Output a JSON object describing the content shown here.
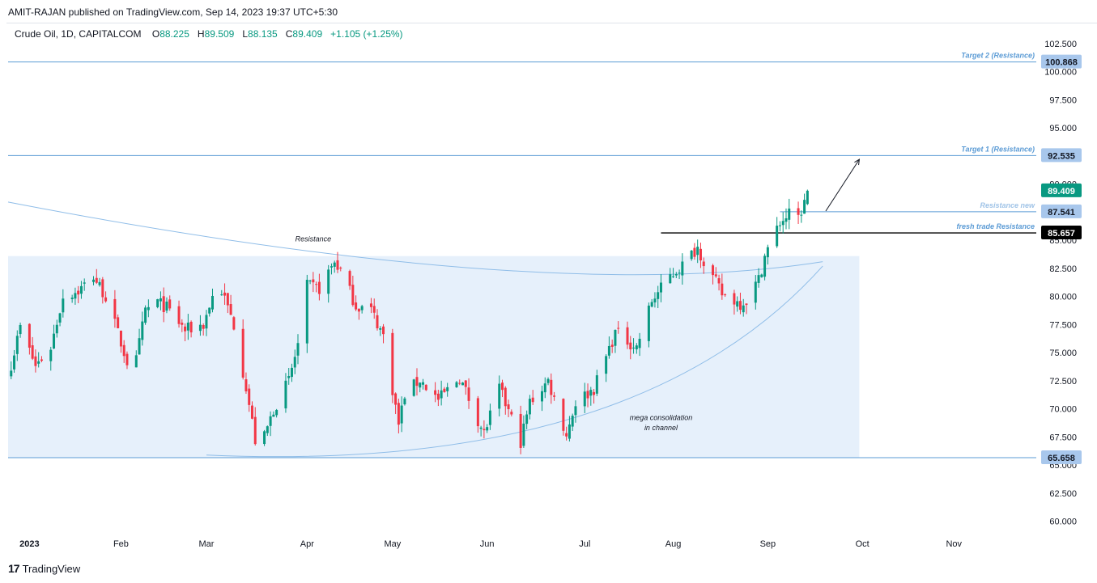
{
  "header": {
    "publisher": "AMIT-RAJAN published on TradingView.com, Sep 14, 2023 19:37 UTC+5:30",
    "symbol": "Crude Oil, 1D, CAPITALCOM",
    "ohlc": {
      "o_label": "O",
      "o": "88.225",
      "h_label": "H",
      "h": "89.509",
      "l_label": "L",
      "l": "88.135",
      "c_label": "C",
      "c": "89.409",
      "change": "+1.105 (+1.25%)"
    }
  },
  "footer": {
    "brand": "TradingView"
  },
  "colors": {
    "up": "#089981",
    "down": "#f23645",
    "level": "#5b9bd5",
    "zone": "#e3eefb",
    "accent": "#2962ff"
  },
  "chart_data": {
    "type": "candlestick",
    "title": "Crude Oil, 1D, CAPITALCOM",
    "y_axis": {
      "min": 58.9,
      "max": 103.5,
      "ticks": [
        "60.000",
        "62.500",
        "65.000",
        "67.500",
        "70.000",
        "72.500",
        "75.000",
        "77.500",
        "80.000",
        "82.500",
        "85.000",
        "87.500",
        "90.000",
        "92.500",
        "95.000",
        "97.500",
        "100.000",
        "102.500"
      ]
    },
    "x_axis": {
      "start": "2022-12-26",
      "end": "2023-11-28",
      "labels": [
        {
          "date": "2023-01-02",
          "label": "2023"
        },
        {
          "date": "2023-02-01",
          "label": "Feb"
        },
        {
          "date": "2023-03-01",
          "label": "Mar"
        },
        {
          "date": "2023-04-03",
          "label": "Apr"
        },
        {
          "date": "2023-05-01",
          "label": "May"
        },
        {
          "date": "2023-06-01",
          "label": "Jun"
        },
        {
          "date": "2023-07-03",
          "label": "Jul"
        },
        {
          "date": "2023-08-01",
          "label": "Aug"
        },
        {
          "date": "2023-09-01",
          "label": "Sep"
        },
        {
          "date": "2023-10-02",
          "label": "Oct"
        },
        {
          "date": "2023-11-01",
          "label": "Nov"
        }
      ]
    },
    "series": [
      {
        "name": "Crude Oil",
        "close_anchors": [
          [
            "2022-12-27",
            74.0
          ],
          [
            "2022-12-30",
            77.3
          ],
          [
            "2023-01-04",
            73.8
          ],
          [
            "2023-01-09",
            75.5
          ],
          [
            "2023-01-13",
            80.0
          ],
          [
            "2023-01-18",
            80.5
          ],
          [
            "2023-01-23",
            81.8
          ],
          [
            "2023-01-27",
            80.0
          ],
          [
            "2023-02-03",
            74.2
          ],
          [
            "2023-02-06",
            74.3
          ],
          [
            "2023-02-09",
            78.8
          ],
          [
            "2023-02-13",
            79.5
          ],
          [
            "2023-02-16",
            79.0
          ],
          [
            "2023-02-22",
            77.0
          ],
          [
            "2023-02-28",
            77.5
          ],
          [
            "2023-03-03",
            80.0
          ],
          [
            "2023-03-06",
            80.5
          ],
          [
            "2023-03-10",
            77.5
          ],
          [
            "2023-03-14",
            72.0
          ],
          [
            "2023-03-17",
            67.2
          ],
          [
            "2023-03-20",
            67.5
          ],
          [
            "2023-03-23",
            70.0
          ],
          [
            "2023-03-28",
            72.5
          ],
          [
            "2023-03-31",
            75.7
          ],
          [
            "2023-04-03",
            80.9
          ],
          [
            "2023-04-07",
            80.7
          ],
          [
            "2023-04-12",
            83.1
          ],
          [
            "2023-04-14",
            82.3
          ],
          [
            "2023-04-19",
            79.2
          ],
          [
            "2023-04-24",
            78.8
          ],
          [
            "2023-04-28",
            76.5
          ],
          [
            "2023-05-03",
            68.6
          ],
          [
            "2023-05-05",
            71.3
          ],
          [
            "2023-05-10",
            72.6
          ],
          [
            "2023-05-16",
            70.8
          ],
          [
            "2023-05-23",
            72.8
          ],
          [
            "2023-05-31",
            67.8
          ],
          [
            "2023-06-05",
            71.8
          ],
          [
            "2023-06-12",
            67.1
          ],
          [
            "2023-06-15",
            70.6
          ],
          [
            "2023-06-21",
            72.5
          ],
          [
            "2023-06-27",
            67.7
          ],
          [
            "2023-06-30",
            70.6
          ],
          [
            "2023-07-06",
            71.8
          ],
          [
            "2023-07-13",
            76.8
          ],
          [
            "2023-07-20",
            75.5
          ],
          [
            "2023-07-25",
            79.6
          ],
          [
            "2023-07-31",
            81.8
          ],
          [
            "2023-08-04",
            82.8
          ],
          [
            "2023-08-09",
            84.4
          ],
          [
            "2023-08-11",
            83.2
          ],
          [
            "2023-08-17",
            80.2
          ],
          [
            "2023-08-23",
            79.4
          ],
          [
            "2023-08-25",
            79.7
          ],
          [
            "2023-08-29",
            81.5
          ],
          [
            "2023-08-31",
            83.6
          ],
          [
            "2023-09-05",
            86.6
          ],
          [
            "2023-09-08",
            87.3
          ],
          [
            "2023-09-11",
            87.0
          ],
          [
            "2023-09-13",
            88.3
          ],
          [
            "2023-09-14",
            89.409
          ]
        ]
      }
    ],
    "last_candle": {
      "date": "2023-09-14",
      "open": 88.225,
      "high": 89.509,
      "low": 88.135,
      "close": 89.409
    },
    "levels": [
      {
        "label": "Target 2 (Resistance)",
        "value": 100.868,
        "value_label": "100.868",
        "style": "line"
      },
      {
        "label": "Target 1 (Resistance)",
        "value": 92.535,
        "value_label": "92.535",
        "style": "line"
      },
      {
        "label": "Resistance new",
        "value": 87.541,
        "value_label": "87.541",
        "style": "short",
        "from": "2023-09-05"
      },
      {
        "label": "fresh trade Resistance",
        "value": 85.657,
        "value_label": "85.657",
        "style": "black",
        "from": "2023-07-28"
      },
      {
        "label": "",
        "value": 65.658,
        "value_label": "65.658",
        "style": "line"
      }
    ],
    "last_price": {
      "value": 89.409,
      "label": "89.409"
    },
    "consolidation_zone": {
      "from": "2022-12-26",
      "to": "2023-10-01",
      "top": 83.6,
      "bottom": 65.7
    },
    "annotations": {
      "resistance": {
        "text": "Resistance",
        "date": "2023-04-05",
        "price": 84.9
      },
      "channel_line1": {
        "text": "mega consolidation",
        "date": "2023-07-28",
        "price": 69.0
      },
      "channel_line2": {
        "text": "in channel",
        "date": "2023-07-28",
        "price": 68.1
      }
    }
  }
}
